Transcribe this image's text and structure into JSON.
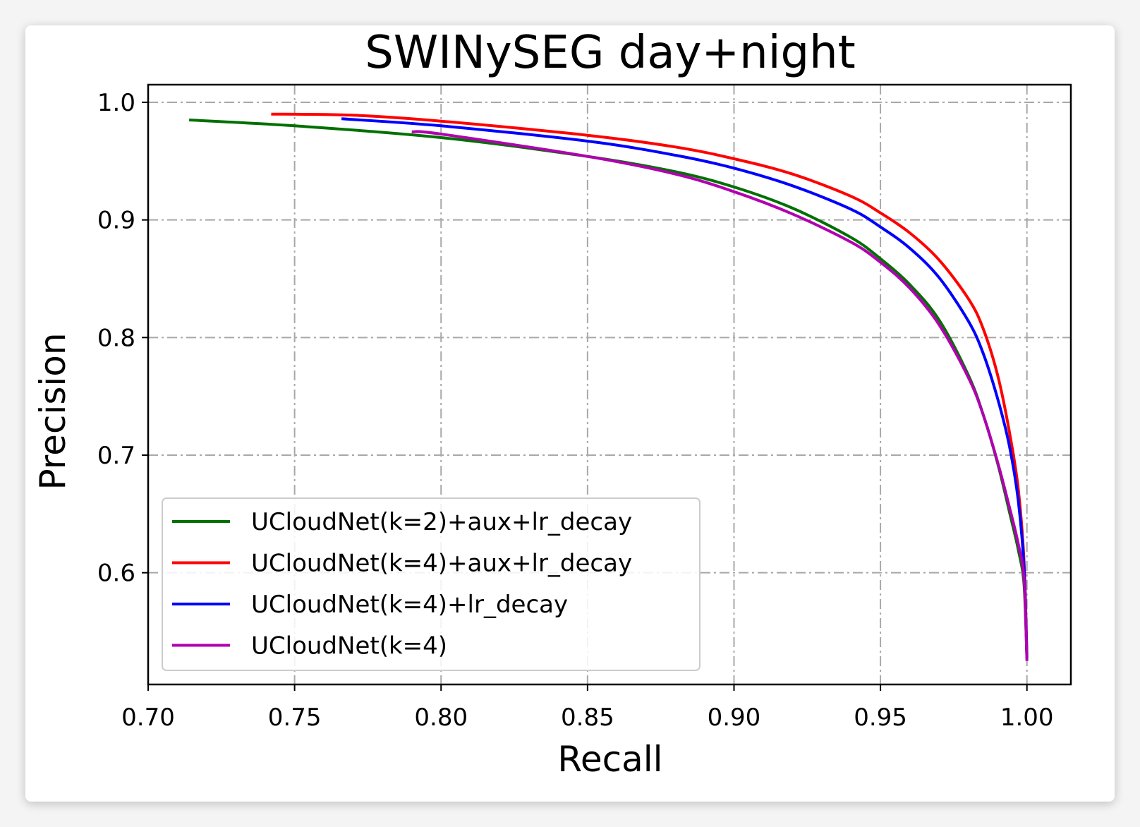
{
  "chart_data": {
    "type": "line",
    "title": "SWINySEG day+night",
    "xlabel": "Recall",
    "ylabel": "Precision",
    "xlim": [
      0.7,
      1.015
    ],
    "ylim": [
      0.505,
      1.015
    ],
    "xticks": [
      0.7,
      0.75,
      0.8,
      0.85,
      0.9,
      0.95,
      1.0
    ],
    "xtick_labels": [
      "0.70",
      "0.75",
      "0.80",
      "0.85",
      "0.90",
      "0.95",
      "1.00"
    ],
    "yticks": [
      0.6,
      0.7,
      0.8,
      0.9,
      1.0
    ],
    "ytick_labels": [
      "0.6",
      "0.7",
      "0.8",
      "0.9",
      "1.0"
    ],
    "grid": true,
    "legend_position": "lower-left",
    "series": [
      {
        "name": "UCloudNet(k=2)+aux+lr_decay",
        "color": "#007000",
        "x": [
          0.714,
          0.75,
          0.8,
          0.85,
          0.88,
          0.9,
          0.92,
          0.94,
          0.95,
          0.96,
          0.97,
          0.98,
          0.985,
          0.99,
          0.994,
          0.997,
          0.999,
          1.0
        ],
        "y": [
          0.985,
          0.98,
          0.97,
          0.954,
          0.941,
          0.928,
          0.91,
          0.885,
          0.867,
          0.845,
          0.815,
          0.768,
          0.735,
          0.693,
          0.652,
          0.62,
          0.59,
          0.527
        ]
      },
      {
        "name": "UCloudNet(k=4)+aux+lr_decay",
        "color": "#ff0000",
        "x": [
          0.742,
          0.77,
          0.8,
          0.85,
          0.88,
          0.9,
          0.92,
          0.94,
          0.95,
          0.96,
          0.97,
          0.98,
          0.985,
          0.99,
          0.994,
          0.997,
          0.999,
          1.0
        ],
        "y": [
          0.99,
          0.989,
          0.984,
          0.972,
          0.962,
          0.952,
          0.939,
          0.92,
          0.906,
          0.889,
          0.866,
          0.833,
          0.808,
          0.768,
          0.72,
          0.672,
          0.61,
          0.53
        ]
      },
      {
        "name": "UCloudNet(k=4)+lr_decay",
        "color": "#0000ff",
        "x": [
          0.766,
          0.8,
          0.85,
          0.88,
          0.9,
          0.92,
          0.94,
          0.95,
          0.96,
          0.97,
          0.98,
          0.985,
          0.99,
          0.994,
          0.997,
          0.999,
          1.0
        ],
        "y": [
          0.986,
          0.98,
          0.967,
          0.955,
          0.944,
          0.929,
          0.909,
          0.894,
          0.876,
          0.851,
          0.814,
          0.787,
          0.748,
          0.708,
          0.662,
          0.605,
          0.528
        ]
      },
      {
        "name": "UCloudNet(k=4)",
        "color": "#b000b0",
        "x": [
          0.79,
          0.8,
          0.85,
          0.88,
          0.9,
          0.92,
          0.94,
          0.95,
          0.96,
          0.97,
          0.98,
          0.985,
          0.99,
          0.994,
          0.997,
          0.999,
          1.0
        ],
        "y": [
          0.975,
          0.973,
          0.954,
          0.939,
          0.924,
          0.905,
          0.881,
          0.864,
          0.842,
          0.811,
          0.766,
          0.735,
          0.694,
          0.656,
          0.625,
          0.595,
          0.525
        ]
      }
    ]
  }
}
